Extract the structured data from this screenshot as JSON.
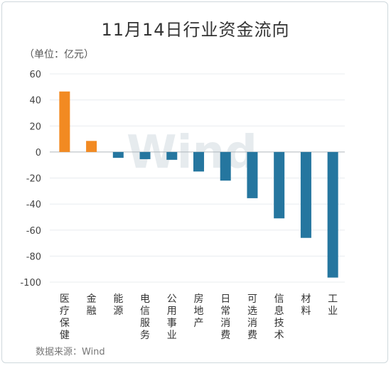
{
  "title": "11月14日行业资金流向",
  "unit_label": "（单位：亿元）",
  "source": "数据来源：Wind",
  "watermark": "Wind",
  "colors": {
    "positive": "#f28a22",
    "negative": "#25769f",
    "grid": "#e8ecef",
    "axis": "#b0b7bc"
  },
  "chart_data": {
    "type": "bar",
    "title": "11月14日行业资金流向",
    "ylabel": "（单位：亿元）",
    "xlabel": "",
    "ylim": [
      -100,
      60
    ],
    "yticks": [
      60,
      40,
      20,
      0,
      -20,
      -40,
      -60,
      -80,
      -100
    ],
    "grid": true,
    "categories": [
      "医疗保健",
      "金融",
      "能源",
      "电信服务",
      "公用事业",
      "房地产",
      "日常消费",
      "可选消费",
      "信息技术",
      "材料",
      "工业"
    ],
    "values": [
      46.5,
      8.5,
      -4.5,
      -5.5,
      -6.0,
      -15.0,
      -22.0,
      -35.5,
      -51.0,
      -66.0,
      -96.5
    ]
  }
}
